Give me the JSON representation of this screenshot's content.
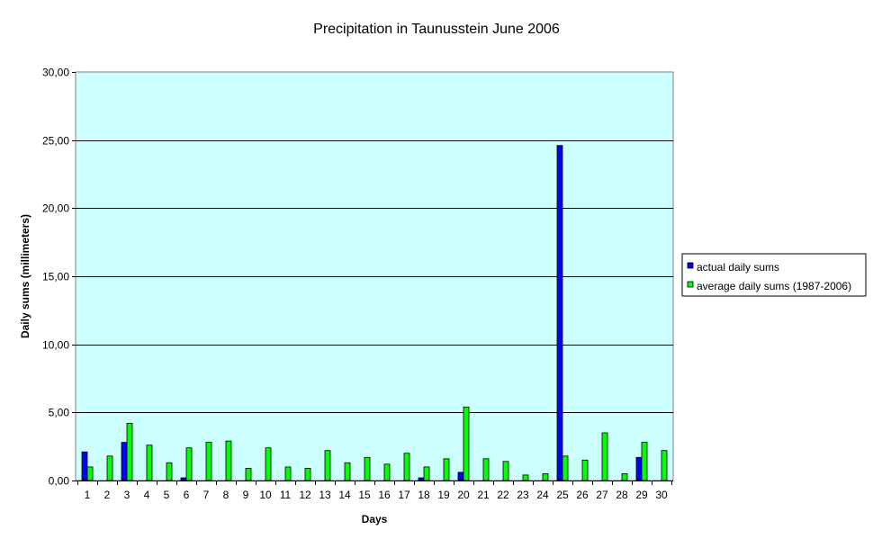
{
  "chart_data": {
    "type": "bar",
    "title": "Precipitation in Taunusstein  June  2006",
    "xlabel": "Days",
    "ylabel": "Daily sums  (millimeters)",
    "ylim": [
      0,
      30
    ],
    "y_ticks": [
      "0,00",
      "5,00",
      "10,00",
      "15,00",
      "20,00",
      "25,00",
      "30,00"
    ],
    "y_tick_values": [
      0,
      5,
      10,
      15,
      20,
      25,
      30
    ],
    "grid": true,
    "legend_position": "right",
    "categories": [
      "1",
      "2",
      "3",
      "4",
      "5",
      "6",
      "7",
      "8",
      "9",
      "10",
      "11",
      "12",
      "13",
      "14",
      "15",
      "16",
      "17",
      "18",
      "19",
      "20",
      "21",
      "22",
      "23",
      "24",
      "25",
      "26",
      "27",
      "28",
      "29",
      "30"
    ],
    "series": [
      {
        "name": "actual daily sums",
        "color": "#0000ff",
        "values": [
          2.1,
          0,
          2.8,
          0,
          0,
          0.2,
          0,
          0,
          0,
          0,
          0,
          0,
          0,
          0,
          0,
          0,
          0,
          0.2,
          0,
          0.6,
          0,
          0,
          0,
          0,
          24.6,
          0,
          0,
          0,
          1.7,
          0
        ]
      },
      {
        "name": "average daily sums (1987-2006)",
        "color": "#00ff00",
        "values": [
          1.0,
          1.8,
          4.2,
          2.6,
          1.3,
          2.4,
          2.8,
          2.9,
          0.9,
          2.4,
          1.0,
          0.9,
          2.2,
          1.3,
          1.7,
          1.2,
          2.0,
          1.0,
          1.6,
          5.4,
          1.6,
          1.4,
          0.4,
          0.5,
          1.8,
          1.5,
          3.5,
          0.5,
          2.8,
          2.2
        ]
      }
    ]
  },
  "colors": {
    "plot_background": "#ccffff",
    "grid_line": "#000000",
    "axis_line": "#808080"
  }
}
